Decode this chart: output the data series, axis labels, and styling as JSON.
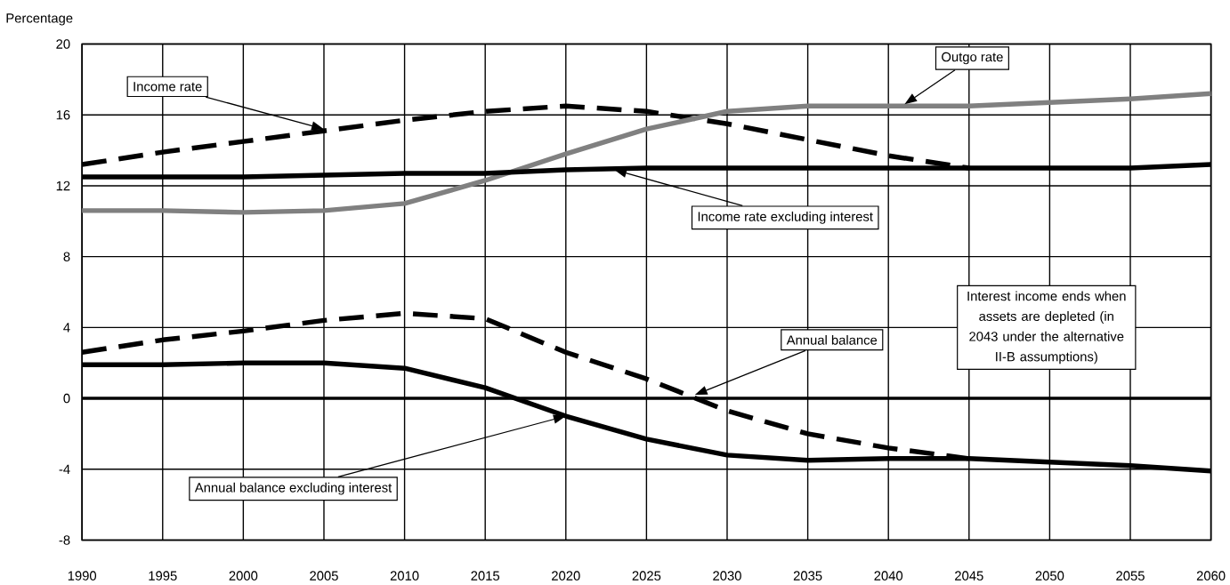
{
  "chart_data": {
    "type": "line",
    "ylabel": "Percentage",
    "x": [
      1990,
      1995,
      2000,
      2005,
      2010,
      2015,
      2020,
      2025,
      2030,
      2035,
      2040,
      2045,
      2050,
      2055,
      2060
    ],
    "xlim": [
      1990,
      2060
    ],
    "xticks": [
      1990,
      1995,
      2000,
      2005,
      2010,
      2015,
      2020,
      2025,
      2030,
      2035,
      2040,
      2045,
      2050,
      2055,
      2060
    ],
    "ylim": [
      -8,
      20
    ],
    "yticks": [
      -8,
      -4,
      0,
      4,
      8,
      12,
      16,
      20
    ],
    "grid": true,
    "marker": "none",
    "series": [
      {
        "name": "Income rate",
        "color": "#000000",
        "line_style": "dashed",
        "values": [
          13.2,
          13.9,
          14.5,
          15.1,
          15.7,
          16.2,
          16.5,
          16.2,
          15.5,
          14.6,
          13.7,
          13.0,
          null,
          null,
          null
        ]
      },
      {
        "name": "Outgo rate",
        "color": "#808080",
        "line_style": "solid",
        "values": [
          10.6,
          10.6,
          10.5,
          10.6,
          11.0,
          12.3,
          13.8,
          15.2,
          16.2,
          16.5,
          16.5,
          16.5,
          16.7,
          16.9,
          17.2
        ]
      },
      {
        "name": "Income rate excluding interest",
        "color": "#000000",
        "line_style": "solid",
        "values": [
          12.5,
          12.5,
          12.5,
          12.6,
          12.7,
          12.7,
          12.9,
          13.0,
          13.0,
          13.0,
          13.0,
          13.0,
          13.0,
          13.0,
          13.2
        ]
      },
      {
        "name": "Annual balance",
        "color": "#000000",
        "line_style": "dashed",
        "values": [
          2.6,
          3.3,
          3.8,
          4.4,
          4.8,
          4.5,
          2.6,
          1.1,
          -0.7,
          -2.0,
          -2.8,
          -3.4,
          null,
          null,
          null
        ]
      },
      {
        "name": "Annual balance excluding interest",
        "color": "#000000",
        "line_style": "solid",
        "values": [
          1.9,
          1.9,
          2.0,
          2.0,
          1.7,
          0.6,
          -1.0,
          -2.3,
          -3.2,
          -3.5,
          -3.4,
          -3.4,
          -3.6,
          -3.8,
          -4.1
        ]
      }
    ],
    "ref_lines": [
      {
        "axis": "y",
        "value": 0
      }
    ],
    "annotations": [
      "Interest income ends when assets are depleted (in 2043 under the alternative II-B assumptions)"
    ]
  }
}
